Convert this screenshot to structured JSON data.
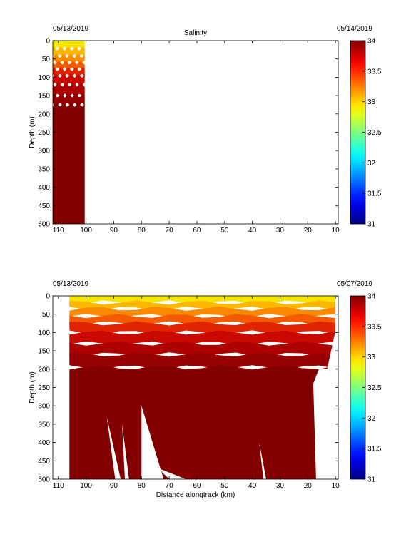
{
  "figure": {
    "chart_data": [
      {
        "type": "heatmap",
        "title": "Salinity",
        "date_left": "05/13/2019",
        "date_right": "05/14/2019",
        "xlabel": "",
        "ylabel": "Depth (m)",
        "x_reversed": true,
        "xlim": [
          112,
          9
        ],
        "ylim": [
          500,
          0
        ],
        "xticks": [
          110,
          100,
          90,
          80,
          70,
          60,
          50,
          40,
          30,
          20,
          10
        ],
        "yticks": [
          0,
          50,
          100,
          150,
          200,
          250,
          300,
          350,
          400,
          450,
          500
        ],
        "data_extent_x": [
          112,
          100.5
        ],
        "contour_depths_m": [
          0,
          22,
          42,
          60,
          78,
          96,
          120,
          150,
          175,
          500
        ],
        "colorbar": {
          "min": 31,
          "max": 34,
          "ticks": [
            31,
            31.5,
            32,
            32.5,
            33,
            33.5,
            34
          ]
        }
      },
      {
        "type": "heatmap",
        "title": "",
        "date_left": "05/13/2019",
        "date_right": "05/07/2019",
        "xlabel": "Distance alongtrack (km)",
        "ylabel": "Depth (m)",
        "x_reversed": true,
        "xlim": [
          112,
          9
        ],
        "ylim": [
          500,
          0
        ],
        "xticks": [
          110,
          100,
          90,
          80,
          70,
          60,
          50,
          40,
          30,
          20,
          10
        ],
        "yticks": [
          0,
          50,
          100,
          150,
          200,
          250,
          300,
          350,
          400,
          450,
          500
        ],
        "data_extent_x": [
          106,
          10
        ],
        "contour_depths_m": [
          0,
          18,
          35,
          55,
          75,
          100,
          130,
          160,
          195,
          500
        ],
        "colorbar": {
          "min": 31,
          "max": 34,
          "ticks": [
            31,
            31.5,
            32,
            32.5,
            33,
            33.5,
            34
          ]
        }
      }
    ]
  }
}
